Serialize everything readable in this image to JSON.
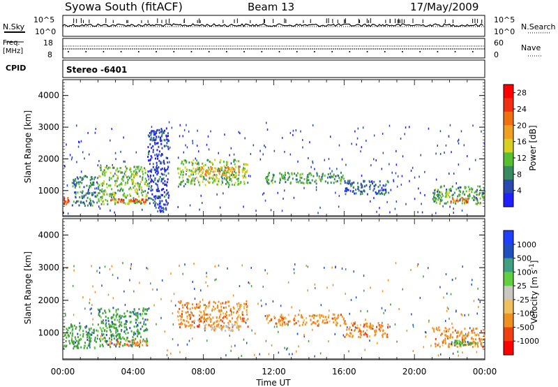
{
  "header": {
    "station": "Syowa South (fitACF)",
    "beam": "Beam 13",
    "date": "17/May/2009"
  },
  "left_labels": {
    "nsky": "N.Sky",
    "freq": "Freq.",
    "freq_unit": "[MHz]",
    "cpid": "CPID"
  },
  "right_labels": {
    "nsearch": "N.Search",
    "nave": "Nave"
  },
  "noise_panel": {
    "left_ticks": [
      "10^5",
      "10^0"
    ],
    "right_ticks": [
      "10^5",
      "10^0"
    ]
  },
  "freq_panel": {
    "left_ticks": [
      "18",
      "8"
    ],
    "right_ticks": [
      "60",
      "0"
    ]
  },
  "cpid_panel": {
    "text": "Stereo -6401"
  },
  "colors": {
    "power_scale": [
      "#1f1fff",
      "#2a4ab0",
      "#3a8a60",
      "#58c030",
      "#d8d020",
      "#f0a020",
      "#f07010",
      "#f03010",
      "#ff0000"
    ],
    "velocity_scale": [
      "#2040ff",
      "#2050c0",
      "#40a080",
      "#60d040",
      "#c8c8c0",
      "#f0c060",
      "#f09020",
      "#f04010",
      "#ff0000"
    ]
  },
  "chart_data": [
    {
      "type": "heatmap",
      "title": "Power",
      "xlabel": "Time UT",
      "ylabel": "Slant Range [km]",
      "x_ticks": [
        "00:00",
        "04:00",
        "08:00",
        "12:00",
        "16:00",
        "20:00",
        "00:00"
      ],
      "y_ticks": [
        "1000",
        "2000",
        "3000",
        "4000"
      ],
      "ylim": [
        180,
        4500
      ],
      "colorbar_label": "Power [dB]",
      "colorbar_ticks": [
        "4",
        "8",
        "12",
        "16",
        "20",
        "24",
        "28"
      ],
      "clim": [
        0,
        30
      ],
      "regions": [
        {
          "t0": 0.0,
          "t1": 0.3,
          "r0": 600,
          "r1": 800,
          "level": 24
        },
        {
          "t0": 0.5,
          "t1": 2.0,
          "r0": 550,
          "r1": 1500,
          "level": 8
        },
        {
          "t0": 2.0,
          "t1": 4.8,
          "r0": 600,
          "r1": 1800,
          "level": 12
        },
        {
          "t0": 2.5,
          "t1": 4.8,
          "r0": 650,
          "r1": 760,
          "level": 24
        },
        {
          "t0": 4.8,
          "t1": 6.0,
          "r0": 350,
          "r1": 3000,
          "level": 4
        },
        {
          "t0": 6.5,
          "t1": 10.5,
          "r0": 1200,
          "r1": 2000,
          "level": 12
        },
        {
          "t0": 7.5,
          "t1": 10.0,
          "r0": 1500,
          "r1": 1800,
          "level": 18
        },
        {
          "t0": 11.5,
          "t1": 16.0,
          "r0": 1250,
          "r1": 1600,
          "level": 10
        },
        {
          "t0": 16.0,
          "t1": 18.5,
          "r0": 900,
          "r1": 1350,
          "level": 6
        },
        {
          "t0": 21.0,
          "t1": 24.0,
          "r0": 600,
          "r1": 1200,
          "level": 10
        },
        {
          "t0": 22.0,
          "t1": 23.0,
          "r0": 650,
          "r1": 800,
          "level": 22
        }
      ]
    },
    {
      "type": "heatmap",
      "title": "Velocity",
      "xlabel": "Time UT",
      "ylabel": "Slant Range [km]",
      "x_ticks": [
        "00:00",
        "04:00",
        "08:00",
        "12:00",
        "16:00",
        "20:00",
        "00:00"
      ],
      "y_ticks": [
        "1000",
        "2000",
        "3000",
        "4000"
      ],
      "ylim": [
        180,
        4500
      ],
      "colorbar_label": "Velocity [m s-1]",
      "colorbar_ticks": [
        "1000",
        "500",
        "100",
        "25",
        "-25",
        "-100",
        "-500",
        "-1000"
      ],
      "regions": [
        {
          "t0": 0.0,
          "t1": 2.0,
          "r0": 550,
          "r1": 1300,
          "level": "green"
        },
        {
          "t0": 2.0,
          "t1": 4.8,
          "r0": 600,
          "r1": 1800,
          "level": "green"
        },
        {
          "t0": 2.5,
          "t1": 4.8,
          "r0": 650,
          "r1": 800,
          "level": "orange"
        },
        {
          "t0": 6.5,
          "t1": 10.5,
          "r0": 1200,
          "r1": 2000,
          "level": "orange"
        },
        {
          "t0": 8.0,
          "t1": 10.0,
          "r0": 1100,
          "r1": 1300,
          "level": "gray"
        },
        {
          "t0": 11.5,
          "t1": 16.0,
          "r0": 1250,
          "r1": 1600,
          "level": "orange"
        },
        {
          "t0": 16.0,
          "t1": 18.5,
          "r0": 900,
          "r1": 1350,
          "level": "orange"
        },
        {
          "t0": 21.0,
          "t1": 24.0,
          "r0": 600,
          "r1": 1200,
          "level": "orange"
        },
        {
          "t0": 22.0,
          "t1": 23.5,
          "r0": 650,
          "r1": 800,
          "level": "green"
        }
      ]
    }
  ]
}
